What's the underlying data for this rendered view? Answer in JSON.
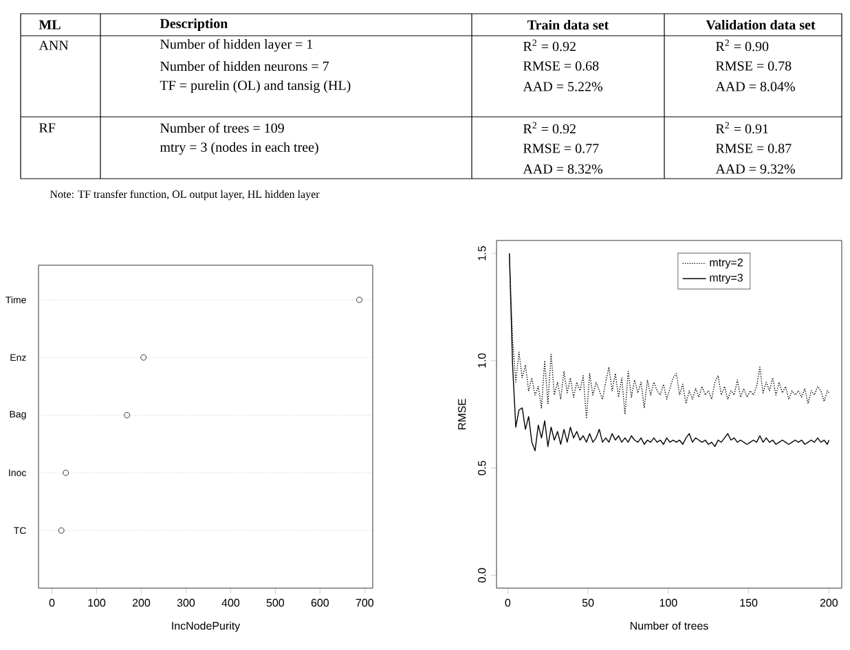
{
  "chart_data": [
    {
      "type": "other",
      "annotations": [
        "ML",
        "Description",
        "Train data set",
        "Validation data set",
        "ANN",
        "Number of hidden layer = 1",
        "Number of hidden neurons = 7",
        "TF = purelin (OL) and tansig (HL)",
        "R$^{2}$ = 0.92",
        "RMSE = 0.68",
        "AAD = 5.22%",
        "R$^{2}$ = 0.90",
        "RMSE = 0.78",
        "AAD = 8.04%",
        "RF",
        "Number of trees = 109",
        "mtry = 3 (nodes in each tree)",
        "R$^{2}$ = 0.92",
        "RMSE = 0.77",
        "AAD = 8.32%",
        "R$^{2}$ = 0.91",
        "RMSE = 0.87",
        "AAD = 9.32%",
        "Note: TF transfer function, OL output layer, HL hidden layer"
      ]
    },
    {
      "type": "scatter",
      "orientation": "horizontal",
      "categories": [
        "Time",
        "Enz",
        "Bag",
        "Inoc",
        "TC"
      ],
      "values": [
        688,
        205,
        168,
        31,
        21
      ],
      "color": "#000000",
      "marker": "circle",
      "grid": "y",
      "xlim": [
        -30,
        718
      ],
      "xticks": [
        0,
        100,
        200,
        300,
        400,
        500,
        600,
        700
      ],
      "xlabel": "IncNodePurity"
    },
    {
      "type": "line",
      "xlabel": "Number of trees",
      "ylabel": "RMSE",
      "legend": "top right",
      "xlim": [
        -7,
        208
      ],
      "ylim": [
        -0.06,
        1.56
      ],
      "xticks": [
        0,
        50,
        100,
        150,
        200
      ],
      "yticks": [
        {
          "value": 0,
          "label": "0.0"
        },
        0.5,
        {
          "value": 1,
          "label": "1.0"
        },
        1.5
      ],
      "x": [
        1,
        3,
        5,
        7,
        9,
        11,
        13,
        15,
        17,
        19,
        21,
        23,
        25,
        27,
        29,
        31,
        33,
        35,
        37,
        39,
        41,
        43,
        45,
        47,
        49,
        51,
        53,
        55,
        57,
        59,
        61,
        63,
        65,
        67,
        69,
        71,
        73,
        75,
        77,
        79,
        81,
        83,
        85,
        87,
        89,
        91,
        93,
        95,
        97,
        99,
        101,
        103,
        105,
        107,
        109,
        111,
        113,
        115,
        117,
        119,
        121,
        123,
        125,
        127,
        129,
        131,
        133,
        135,
        137,
        139,
        141,
        143,
        145,
        147,
        149,
        151,
        153,
        155,
        157,
        159,
        161,
        163,
        165,
        167,
        169,
        171,
        173,
        175,
        177,
        179,
        181,
        183,
        185,
        187,
        189,
        191,
        193,
        195,
        197,
        199,
        200
      ],
      "series": [
        {
          "name": "mtry=2",
          "color": "#000000",
          "line_style": "dotted",
          "values": [
            1.5,
            1.1,
            0.9,
            1.04,
            0.92,
            0.98,
            0.86,
            0.92,
            0.84,
            0.88,
            0.78,
            1.0,
            0.8,
            1.03,
            0.84,
            0.9,
            0.82,
            0.95,
            0.85,
            0.92,
            0.83,
            0.9,
            0.86,
            0.93,
            0.73,
            0.94,
            0.84,
            0.9,
            0.86,
            0.82,
            0.9,
            0.97,
            0.86,
            0.94,
            0.83,
            0.92,
            0.75,
            0.95,
            0.83,
            0.91,
            0.85,
            0.9,
            0.78,
            0.91,
            0.84,
            0.9,
            0.86,
            0.84,
            0.89,
            0.82,
            0.87,
            0.92,
            0.94,
            0.84,
            0.89,
            0.8,
            0.86,
            0.82,
            0.87,
            0.83,
            0.88,
            0.84,
            0.86,
            0.82,
            0.9,
            0.93,
            0.84,
            0.88,
            0.82,
            0.86,
            0.84,
            0.91,
            0.83,
            0.87,
            0.83,
            0.86,
            0.84,
            0.88,
            0.97,
            0.85,
            0.9,
            0.86,
            0.92,
            0.84,
            0.9,
            0.85,
            0.88,
            0.82,
            0.86,
            0.84,
            0.86,
            0.83,
            0.87,
            0.8,
            0.86,
            0.84,
            0.88,
            0.86,
            0.81,
            0.86,
            0.85
          ]
        },
        {
          "name": "mtry=3",
          "color": "#000000",
          "line_style": "solid",
          "values": [
            1.5,
            0.98,
            0.69,
            0.77,
            0.78,
            0.68,
            0.74,
            0.62,
            0.58,
            0.7,
            0.64,
            0.72,
            0.6,
            0.69,
            0.63,
            0.67,
            0.61,
            0.68,
            0.62,
            0.69,
            0.64,
            0.67,
            0.63,
            0.65,
            0.62,
            0.66,
            0.62,
            0.64,
            0.68,
            0.62,
            0.64,
            0.62,
            0.66,
            0.63,
            0.65,
            0.62,
            0.64,
            0.62,
            0.65,
            0.63,
            0.62,
            0.64,
            0.61,
            0.63,
            0.62,
            0.64,
            0.62,
            0.63,
            0.61,
            0.64,
            0.62,
            0.63,
            0.62,
            0.63,
            0.61,
            0.64,
            0.66,
            0.62,
            0.64,
            0.63,
            0.62,
            0.63,
            0.61,
            0.62,
            0.6,
            0.63,
            0.62,
            0.64,
            0.66,
            0.63,
            0.64,
            0.62,
            0.63,
            0.62,
            0.61,
            0.62,
            0.63,
            0.62,
            0.65,
            0.62,
            0.64,
            0.62,
            0.63,
            0.61,
            0.62,
            0.63,
            0.62,
            0.61,
            0.62,
            0.63,
            0.62,
            0.63,
            0.61,
            0.62,
            0.63,
            0.62,
            0.64,
            0.62,
            0.63,
            0.61,
            0.63
          ]
        }
      ]
    }
  ]
}
